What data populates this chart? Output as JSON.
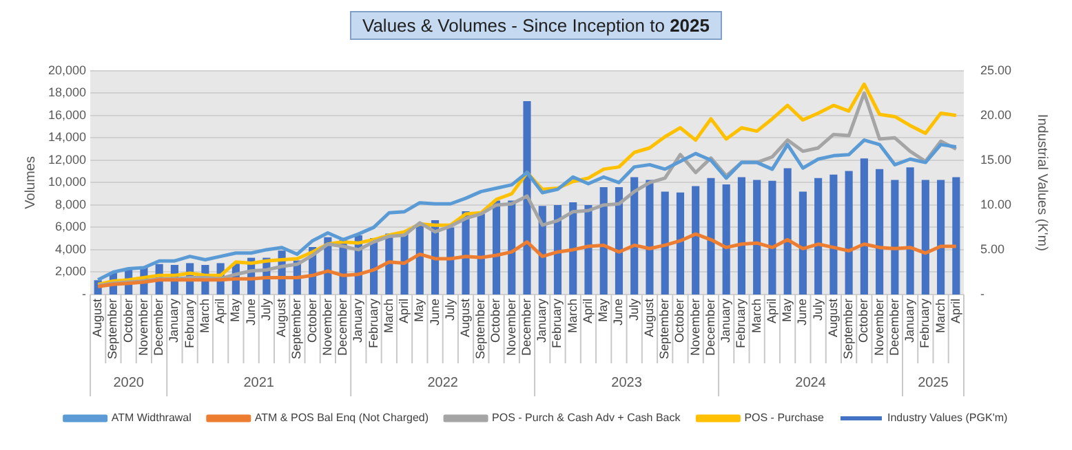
{
  "chart_data": {
    "type": "bar",
    "title": "Values & Volumes - Since Inception to 2025",
    "categories": [
      "August",
      "September",
      "October",
      "November",
      "December",
      "January",
      "February",
      "March",
      "April",
      "May",
      "June",
      "July",
      "August",
      "September",
      "October",
      "November",
      "December",
      "January",
      "February",
      "March",
      "April",
      "May",
      "June",
      "July",
      "August",
      "September",
      "October",
      "November",
      "December",
      "January",
      "February",
      "March",
      "April",
      "May",
      "June",
      "July",
      "August",
      "September",
      "October",
      "November",
      "December",
      "January",
      "February",
      "March",
      "April",
      "May",
      "June",
      "July",
      "August",
      "September",
      "October",
      "November",
      "December",
      "January",
      "February",
      "March",
      "April"
    ],
    "annotations": [
      "2020",
      "2021",
      "2022",
      "2023",
      "2024",
      "2025"
    ],
    "ylabel": "Volumes",
    "y2label": "Industrial Values (K'm)",
    "series": [
      {
        "name": "Industry Values (PGK'm)",
        "axis": "y2",
        "color": "#4472c4",
        "values": [
          1.6,
          2.5,
          2.8,
          3.0,
          3.4,
          3.3,
          3.5,
          3.3,
          3.5,
          3.5,
          4.1,
          4.1,
          4.9,
          3.8,
          5.3,
          6.4,
          6.1,
          6.6,
          6.3,
          6.8,
          6.8,
          7.8,
          8.3,
          7.5,
          9.3,
          9.0,
          10.5,
          10.5,
          21.6,
          9.9,
          10.0,
          10.3,
          10.0,
          12.0,
          12.0,
          13.1,
          12.8,
          11.5,
          11.4,
          12.1,
          13.0,
          12.3,
          13.1,
          12.8,
          12.7,
          14.1,
          11.5,
          13.0,
          13.4,
          13.8,
          15.2,
          14.0,
          12.8,
          14.2,
          12.8,
          12.8,
          13.1
        ]
      },
      {
        "name": "ATM Widthrawal",
        "type": "line",
        "color": "#5b9bd5",
        "values": [
          1300,
          2000,
          2300,
          2400,
          3000,
          3000,
          3400,
          3100,
          3400,
          3700,
          3700,
          4000,
          4200,
          3600,
          4800,
          5500,
          4900,
          5400,
          6000,
          7300,
          7400,
          8200,
          8100,
          8100,
          8600,
          9200,
          9500,
          9800,
          10900,
          9100,
          9400,
          10500,
          9900,
          10500,
          10000,
          11400,
          11600,
          11200,
          11900,
          12600,
          12000,
          10400,
          11800,
          11800,
          11200,
          13400,
          11300,
          12100,
          12400,
          12500,
          13800,
          13400,
          11600,
          12100,
          11800,
          13400,
          13200
        ]
      },
      {
        "name": "ATM & POS Bal Enq (Not Charged)",
        "type": "line",
        "color": "#ed7d31",
        "values": [
          700,
          900,
          1000,
          1100,
          1300,
          1300,
          1300,
          1300,
          1300,
          1400,
          1400,
          1500,
          1500,
          1500,
          1700,
          2100,
          1700,
          1800,
          2200,
          2900,
          2800,
          3600,
          3200,
          3200,
          3400,
          3300,
          3500,
          3800,
          4700,
          3400,
          3800,
          4000,
          4300,
          4400,
          3800,
          4400,
          4100,
          4400,
          4800,
          5400,
          4900,
          4200,
          4500,
          4600,
          4200,
          4900,
          4100,
          4500,
          4200,
          3900,
          4500,
          4200,
          4100,
          4200,
          3700,
          4300,
          4300
        ]
      },
      {
        "name": "POS - Purch & Cash Adv + Cash Back",
        "type": "line",
        "color": "#a5a5a5",
        "values": [
          800,
          1000,
          1100,
          1200,
          1400,
          1400,
          1500,
          1500,
          1400,
          1800,
          2100,
          2200,
          2500,
          2700,
          3500,
          4500,
          4300,
          4000,
          4700,
          5200,
          5300,
          6400,
          5600,
          6100,
          6800,
          7200,
          8000,
          8100,
          8800,
          6200,
          6600,
          7400,
          7500,
          8000,
          8100,
          9200,
          10000,
          10400,
          12500,
          10900,
          12200,
          10600,
          11800,
          11800,
          12300,
          13800,
          12800,
          13100,
          14300,
          14200,
          18000,
          13900,
          14000,
          12800,
          11900,
          13700,
          13000
        ]
      },
      {
        "name": "POS - Purchase",
        "type": "line",
        "color": "#ffc000",
        "values": [
          900,
          1200,
          1300,
          1500,
          1700,
          1700,
          1900,
          1700,
          1700,
          2900,
          2800,
          3000,
          3100,
          3200,
          3800,
          4500,
          4700,
          4600,
          4900,
          5300,
          5600,
          6300,
          6200,
          6200,
          7200,
          7300,
          8500,
          9000,
          10900,
          9400,
          9500,
          10100,
          10400,
          11200,
          11400,
          12700,
          13100,
          14100,
          14900,
          13800,
          15700,
          13900,
          14900,
          14600,
          15700,
          16900,
          15600,
          16200,
          16900,
          16400,
          18800,
          16100,
          15900,
          15100,
          14400,
          16200,
          16000
        ]
      }
    ],
    "ylim": [
      0,
      20000
    ],
    "yticks": [
      {
        "value": 0,
        "label": "-"
      },
      {
        "value": 2000,
        "label": "2,000"
      },
      {
        "value": 4000,
        "label": "4,000"
      },
      {
        "value": 6000,
        "label": "6,000"
      },
      {
        "value": 8000,
        "label": "8,000"
      },
      {
        "value": 10000,
        "label": "10,000"
      },
      {
        "value": 12000,
        "label": "12,000"
      },
      {
        "value": 14000,
        "label": "14,000"
      },
      {
        "value": 16000,
        "label": "16,000"
      },
      {
        "value": 18000,
        "label": "18,000"
      },
      {
        "value": 20000,
        "label": "20,000"
      }
    ],
    "y2lim": [
      0,
      25
    ],
    "y2ticks": [
      {
        "value": 0,
        "label": "-"
      },
      {
        "value": 5,
        "label": "5.00"
      },
      {
        "value": 10,
        "label": "10.00"
      },
      {
        "value": 15,
        "label": "15.00"
      },
      {
        "value": 20,
        "label": "20.00"
      },
      {
        "value": 25,
        "label": "25.00"
      }
    ],
    "grid": "y",
    "legend": "bottom",
    "marker": "none",
    "line_style": "solid"
  }
}
